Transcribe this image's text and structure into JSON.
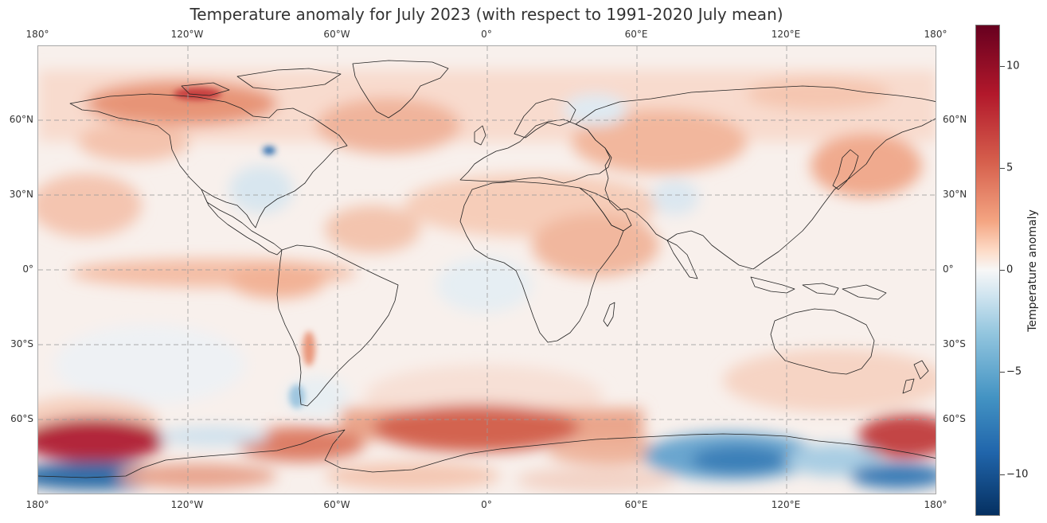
{
  "title": "Temperature anomaly for July 2023 (with respect to 1991-2020 July mean)",
  "lon_ticks": [
    "180°",
    "120°W",
    "60°W",
    "0°",
    "60°E",
    "120°E",
    "180°"
  ],
  "lat_ticks": [
    "60°N",
    "30°N",
    "0°",
    "30°S",
    "60°S"
  ],
  "colorbar": {
    "label": "Temperature anomaly",
    "ticks": [
      "10",
      "5",
      "0",
      "−5",
      "−10"
    ],
    "range": [
      -12,
      12
    ],
    "colormap": "RdBu_r",
    "colors": [
      "#67001f",
      "#b2182b",
      "#d6604d",
      "#f4a582",
      "#fddbc7",
      "#f7f7f7",
      "#d1e5f0",
      "#92c5de",
      "#4393c3",
      "#2166ac",
      "#053061"
    ]
  },
  "map": {
    "projection": "Plate Carree",
    "extent_lon": [
      -180,
      180
    ],
    "extent_lat": [
      -90,
      90
    ],
    "gridlines": "dashed"
  }
}
